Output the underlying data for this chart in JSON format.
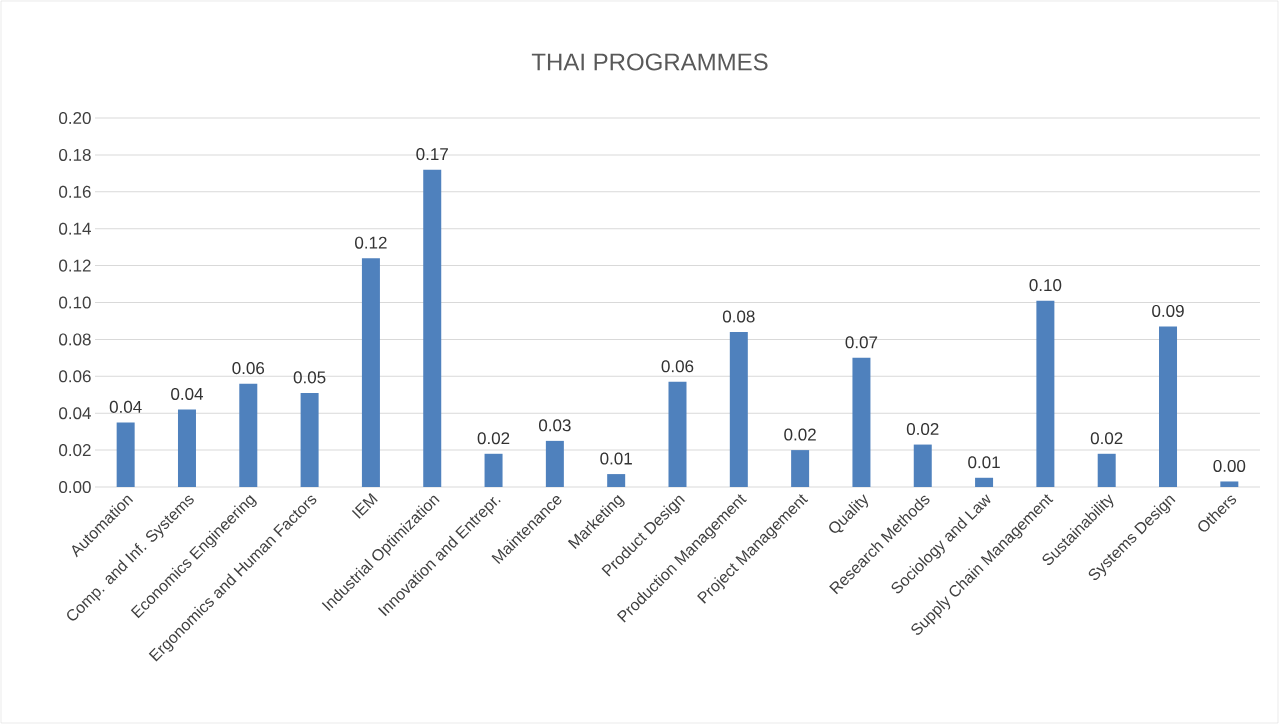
{
  "chart_data": {
    "type": "bar",
    "title": "THAI PROGRAMMES",
    "categories": [
      "Automation",
      "Comp. and Inf. Systems",
      "Economics Engineering",
      "Ergonomics and Human Factors",
      "IEM",
      "Industrial Optimization",
      "Innovation and Entrepr.",
      "Maintenance",
      "Marketing",
      "Product Design",
      "Production Management",
      "Project Management",
      "Quality",
      "Research Methods",
      "Sociology and Law",
      "Supply Chain Management",
      "Sustainability",
      "Systems Design",
      "Others"
    ],
    "values": [
      0.035,
      0.042,
      0.056,
      0.051,
      0.124,
      0.172,
      0.018,
      0.025,
      0.007,
      0.057,
      0.084,
      0.02,
      0.07,
      0.023,
      0.005,
      0.101,
      0.018,
      0.087,
      0.003
    ],
    "value_labels": [
      "0.04",
      "0.04",
      "0.06",
      "0.05",
      "0.12",
      "0.17",
      "0.02",
      "0.03",
      "0.01",
      "0.06",
      "0.08",
      "0.02",
      "0.07",
      "0.02",
      "0.01",
      "0.10",
      "0.02",
      "0.09",
      "0.00"
    ],
    "color": "#4f81bd",
    "ylim": [
      0,
      0.2
    ],
    "yticks": [
      {
        "value": 0,
        "label": "0.00"
      },
      {
        "value": 0.02,
        "label": "0.02"
      },
      {
        "value": 0.04,
        "label": "0.04"
      },
      {
        "value": 0.06,
        "label": "0.06"
      },
      {
        "value": 0.08,
        "label": "0.08"
      },
      {
        "value": 0.1,
        "label": "0.10"
      },
      {
        "value": 0.12,
        "label": "0.12"
      },
      {
        "value": 0.14,
        "label": "0.14"
      },
      {
        "value": 0.16,
        "label": "0.16"
      },
      {
        "value": 0.18,
        "label": "0.18"
      },
      {
        "value": 0.2,
        "label": "0.20"
      }
    ],
    "grid": "y"
  }
}
